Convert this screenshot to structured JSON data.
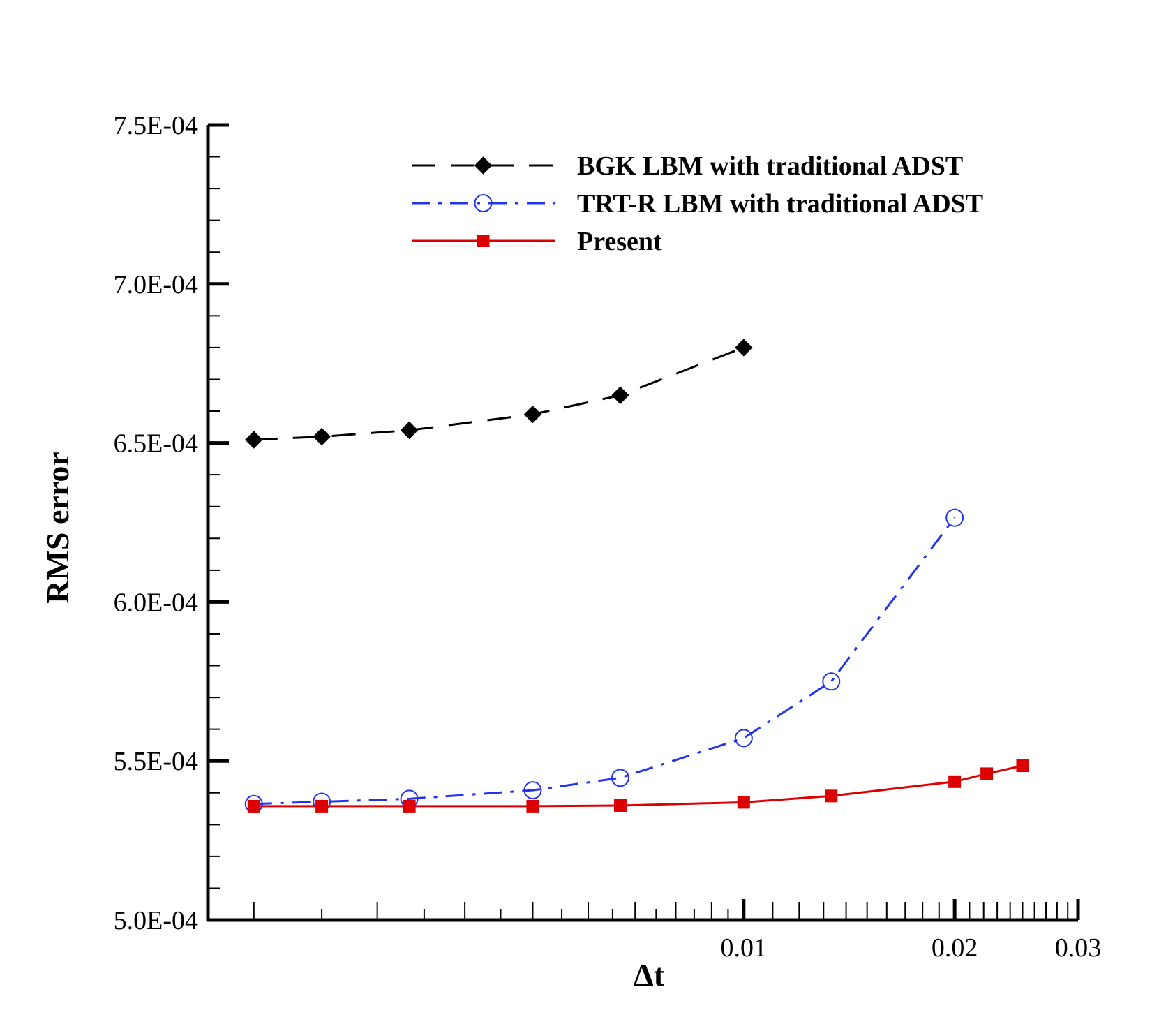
{
  "chart_data": {
    "type": "line",
    "xscale": "log",
    "xlabel": "Δt",
    "ylabel": "RMS error",
    "xlim": [
      0.00172,
      0.03
    ],
    "ylim": [
      0.0005,
      0.00075
    ],
    "x_tick_labels": [
      {
        "value": 0.01,
        "label": "0.01"
      },
      {
        "value": 0.02,
        "label": "0.02"
      },
      {
        "value": 0.03,
        "label": "0.03"
      }
    ],
    "y_tick_labels": [
      {
        "value": 0.0005,
        "label": "5.0E-04"
      },
      {
        "value": 0.00055,
        "label": "5.5E-04"
      },
      {
        "value": 0.0006,
        "label": "6.0E-04"
      },
      {
        "value": 0.00065,
        "label": "6.5E-04"
      },
      {
        "value": 0.0007,
        "label": "7.0E-04"
      },
      {
        "value": 0.00075,
        "label": "7.5E-04"
      }
    ],
    "legend_position": "top-right",
    "series": [
      {
        "name": "BGK LBM with traditional ADST",
        "color": "#000000",
        "line": "dashed",
        "marker": "diamond",
        "x": [
          0.002,
          0.0025,
          0.0033333,
          0.005,
          0.0066667,
          0.01
        ],
        "y": [
          0.000651,
          0.000652,
          0.000654,
          0.000659,
          0.000665,
          0.00068
        ]
      },
      {
        "name": "TRT-R LBM with traditional ADST",
        "color": "#2233ee",
        "line": "dashdot",
        "marker": "open-circle",
        "x": [
          0.002,
          0.0025,
          0.0033333,
          0.005,
          0.0066667,
          0.01,
          0.0133333,
          0.02
        ],
        "y": [
          0.0005365,
          0.0005372,
          0.0005381,
          0.0005408,
          0.0005447,
          0.0005572,
          0.000575,
          0.0006265
        ]
      },
      {
        "name": "Present",
        "color": "#dd0000",
        "line": "solid",
        "marker": "filled-square",
        "x": [
          0.002,
          0.0025,
          0.0033333,
          0.005,
          0.0066667,
          0.01,
          0.0133333,
          0.02,
          0.0222222,
          0.025
        ],
        "y": [
          0.0005358,
          0.0005358,
          0.0005358,
          0.0005358,
          0.000536,
          0.000537,
          0.000539,
          0.0005435,
          0.000546,
          0.0005485
        ]
      }
    ]
  }
}
